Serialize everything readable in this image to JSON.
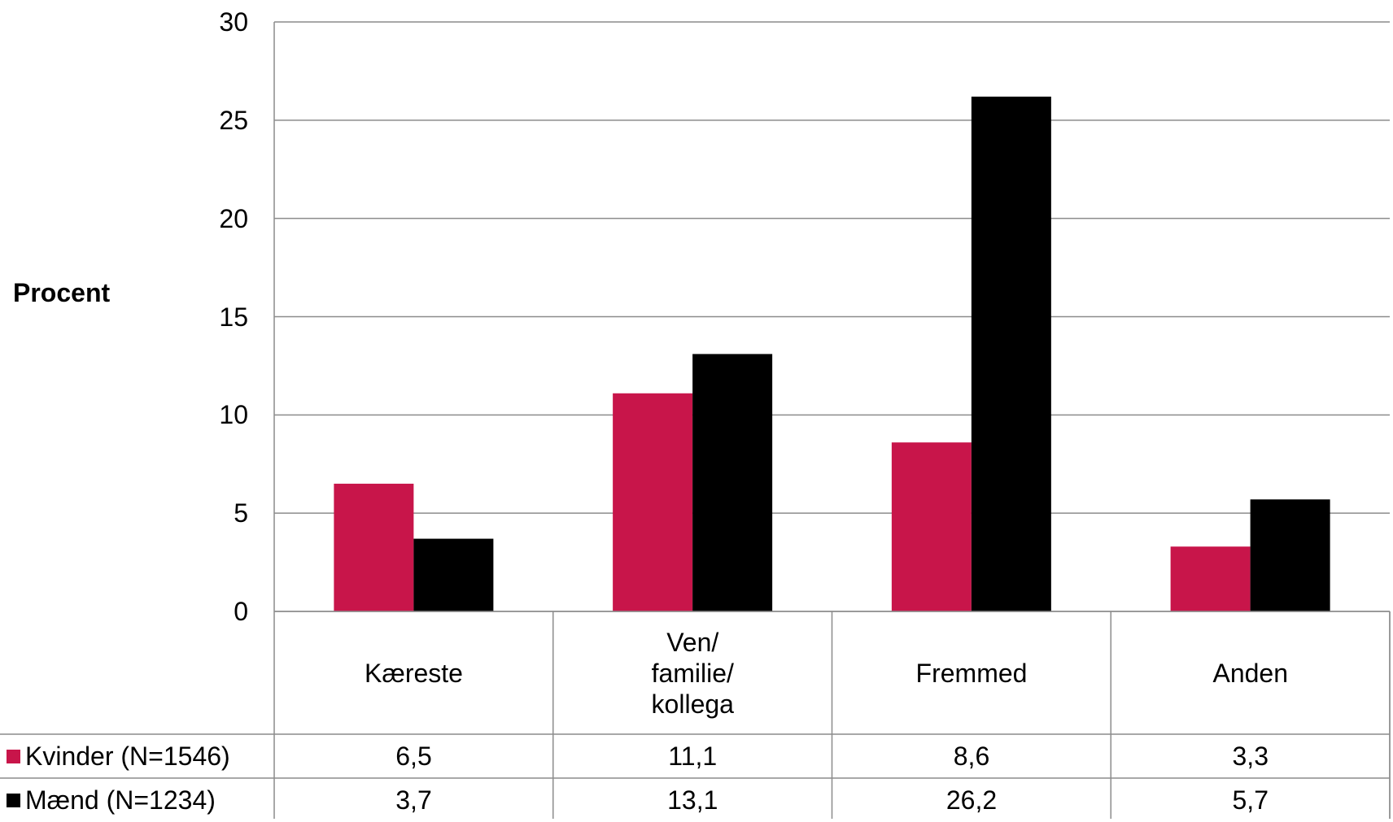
{
  "chart_data": {
    "type": "bar",
    "ylabel": "Procent",
    "ylim": [
      0,
      30
    ],
    "yticks": [
      0,
      5,
      10,
      15,
      20,
      25,
      30
    ],
    "grid": true,
    "legend": "data-table-left",
    "categories": [
      "Kæreste",
      "Ven/\nfamilie/\nkollega",
      "Fremmed",
      "Anden"
    ],
    "series": [
      {
        "name": "Kvinder (N=1546)",
        "color": "#C8154A",
        "values": [
          6.5,
          11.1,
          8.6,
          3.3
        ],
        "labels": [
          "6,5",
          "11,1",
          "8,6",
          "3,3"
        ]
      },
      {
        "name": "Mænd (N=1234)",
        "color": "#000000",
        "values": [
          3.7,
          13.1,
          26.2,
          5.7
        ],
        "labels": [
          "3,7",
          "13,1",
          "26,2",
          "5,7"
        ]
      }
    ]
  }
}
